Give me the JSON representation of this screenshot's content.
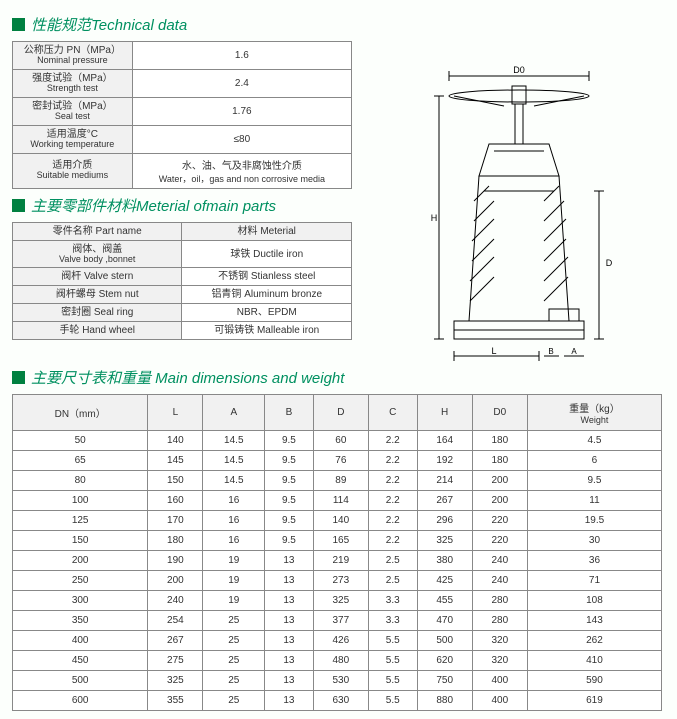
{
  "sections": {
    "tech": "性能规范Technical data",
    "material": "主要零部件材料Meterial ofmain parts",
    "dimensions": "主要尺寸表和重量 Main dimensions and weight"
  },
  "tech_rows": [
    {
      "cn": "公称压力 PN（MPa）",
      "en": "Nominal pressure",
      "val": "1.6"
    },
    {
      "cn": "强度试验（MPa）",
      "en": "Strength test",
      "val": "2.4"
    },
    {
      "cn": "密封试验（MPa）",
      "en": "Seal test",
      "val": "1.76"
    },
    {
      "cn": "适用温度°C",
      "en": "Working temperature",
      "val": "≤80"
    },
    {
      "cn": "适用介质",
      "en": "Suitable mediums",
      "val_cn": "水、油、气及非腐蚀性介质",
      "val_en": "Water，oil，gas and non  corrosive media"
    }
  ],
  "mat_header": {
    "cn1": "零件名称 Part name",
    "cn2": "材料 Meterial"
  },
  "mat_rows": [
    {
      "p_cn": "阀体、阀盖",
      "p_en": "Valve body ,bonnet",
      "m": "球铁 Ductile iron"
    },
    {
      "p_cn": "阀杆 Valve stern",
      "p_en": "",
      "m": "不锈钢 Stianless steel"
    },
    {
      "p_cn": "阀杆螺母 Stem nut",
      "p_en": "",
      "m": "铝青铜 Aluminum bronze"
    },
    {
      "p_cn": "密封圈 Seal ring",
      "p_en": "",
      "m": "NBR、EPDM"
    },
    {
      "p_cn": "手轮 Hand wheel",
      "p_en": "",
      "m": "可锻铸铁 Malleable iron"
    }
  ],
  "dim_headers": [
    "DN（mm）",
    "L",
    "A",
    "B",
    "D",
    "C",
    "H",
    "D0"
  ],
  "dim_weight_header": {
    "cn": "重量（kg）",
    "en": "Weight"
  },
  "dim_rows": [
    [
      "50",
      "140",
      "14.5",
      "9.5",
      "60",
      "2.2",
      "164",
      "180",
      "4.5"
    ],
    [
      "65",
      "145",
      "14.5",
      "9.5",
      "76",
      "2.2",
      "192",
      "180",
      "6"
    ],
    [
      "80",
      "150",
      "14.5",
      "9.5",
      "89",
      "2.2",
      "214",
      "200",
      "9.5"
    ],
    [
      "100",
      "160",
      "16",
      "9.5",
      "114",
      "2.2",
      "267",
      "200",
      "11"
    ],
    [
      "125",
      "170",
      "16",
      "9.5",
      "140",
      "2.2",
      "296",
      "220",
      "19.5"
    ],
    [
      "150",
      "180",
      "16",
      "9.5",
      "165",
      "2.2",
      "325",
      "220",
      "30"
    ],
    [
      "200",
      "190",
      "19",
      "13",
      "219",
      "2.5",
      "380",
      "240",
      "36"
    ],
    [
      "250",
      "200",
      "19",
      "13",
      "273",
      "2.5",
      "425",
      "240",
      "71"
    ],
    [
      "300",
      "240",
      "19",
      "13",
      "325",
      "3.3",
      "455",
      "280",
      "108"
    ],
    [
      "350",
      "254",
      "25",
      "13",
      "377",
      "3.3",
      "470",
      "280",
      "143"
    ],
    [
      "400",
      "267",
      "25",
      "13",
      "426",
      "5.5",
      "500",
      "320",
      "262"
    ],
    [
      "450",
      "275",
      "25",
      "13",
      "480",
      "5.5",
      "620",
      "320",
      "410"
    ],
    [
      "500",
      "325",
      "25",
      "13",
      "530",
      "5.5",
      "750",
      "400",
      "590"
    ],
    [
      "600",
      "355",
      "25",
      "13",
      "630",
      "5.5",
      "880",
      "400",
      "619"
    ]
  ],
  "diagram_labels": {
    "D0": "D0",
    "H": "H",
    "D": "D",
    "L": "L",
    "B": "B",
    "A": "A"
  }
}
